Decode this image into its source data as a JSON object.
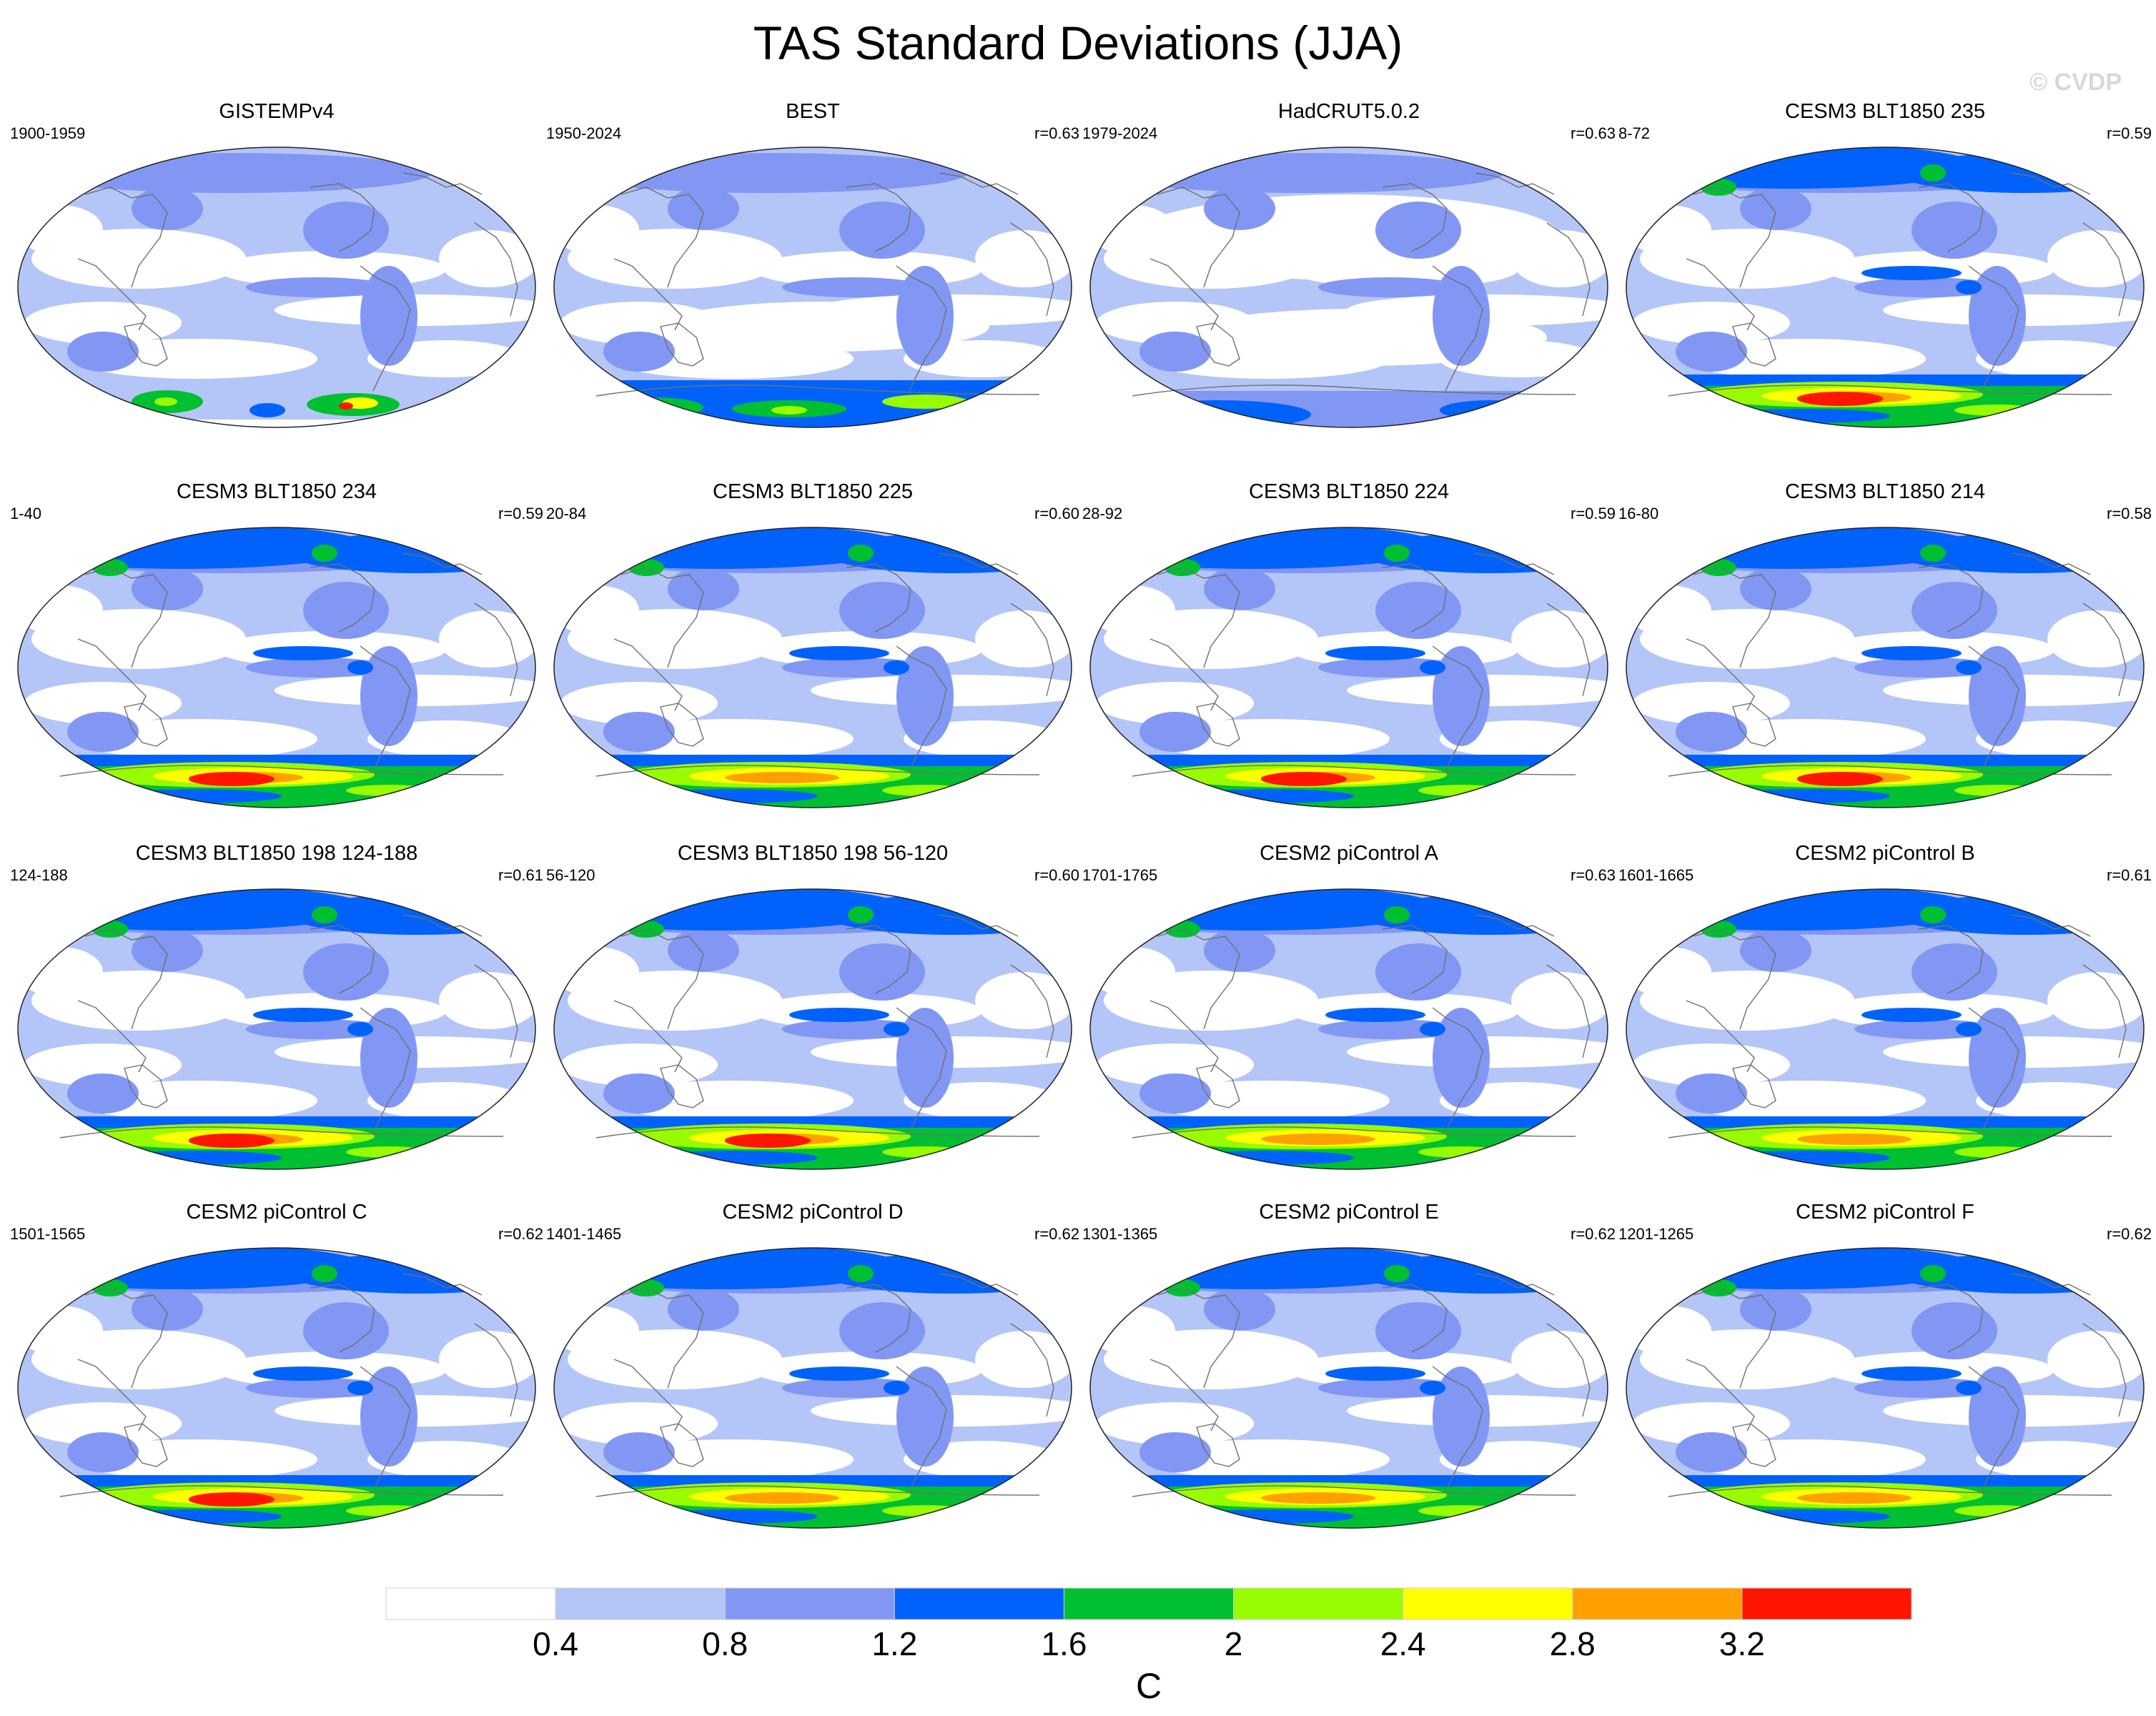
{
  "figure": {
    "title": "TAS Standard Deviations (JJA)",
    "watermark": "© CVDP"
  },
  "colors": {
    "levels": [
      "#ffffff",
      "#b4c5f7",
      "#8297f3",
      "#0062fa",
      "#00c032",
      "#98fb00",
      "#ffff00",
      "#ffa000",
      "#ff1600"
    ],
    "coast": "#707070"
  },
  "chart_data": {
    "type": "heatmap",
    "variable": "TAS",
    "season": "JJA",
    "units": "C",
    "colorbar": {
      "ticks": [
        "0.4",
        "0.8",
        "1.2",
        "1.6",
        "2",
        "2.4",
        "2.8",
        "3.2"
      ],
      "label": "C"
    },
    "panels": [
      {
        "title": "GISTEMPv4",
        "period": "1900-1959",
        "corr": "",
        "max_level": 8,
        "kind": "obs_gis"
      },
      {
        "title": "BEST",
        "period": "1950-2024",
        "corr": "r=0.63",
        "max_level": 5,
        "kind": "obs_best"
      },
      {
        "title": "HadCRUT5.0.2",
        "period": "1979-2024",
        "corr": "r=0.63",
        "max_level": 3,
        "kind": "obs_had"
      },
      {
        "title": "CESM3 BLT1850 235",
        "period": "8-72",
        "corr": "r=0.59",
        "max_level": 8,
        "kind": "model"
      },
      {
        "title": "CESM3 BLT1850 234",
        "period": "1-40",
        "corr": "r=0.59",
        "max_level": 8,
        "kind": "model"
      },
      {
        "title": "CESM3 BLT1850 225",
        "period": "20-84",
        "corr": "r=0.60",
        "max_level": 7,
        "kind": "model"
      },
      {
        "title": "CESM3 BLT1850 224",
        "period": "28-92",
        "corr": "r=0.59",
        "max_level": 8,
        "kind": "model"
      },
      {
        "title": "CESM3 BLT1850 214",
        "period": "16-80",
        "corr": "r=0.58",
        "max_level": 8,
        "kind": "model"
      },
      {
        "title": "CESM3 BLT1850 198 124-188",
        "period": "124-188",
        "corr": "r=0.61",
        "max_level": 8,
        "kind": "model"
      },
      {
        "title": "CESM3 BLT1850 198 56-120",
        "period": "56-120",
        "corr": "r=0.60",
        "max_level": 8,
        "kind": "model"
      },
      {
        "title": "CESM2 piControl A",
        "period": "1701-1765",
        "corr": "r=0.63",
        "max_level": 7,
        "kind": "model"
      },
      {
        "title": "CESM2 piControl B",
        "period": "1601-1665",
        "corr": "r=0.61",
        "max_level": 7,
        "kind": "model"
      },
      {
        "title": "CESM2 piControl C",
        "period": "1501-1565",
        "corr": "r=0.62",
        "max_level": 8,
        "kind": "model"
      },
      {
        "title": "CESM2 piControl D",
        "period": "1401-1465",
        "corr": "r=0.62",
        "max_level": 7,
        "kind": "model"
      },
      {
        "title": "CESM2 piControl E",
        "period": "1301-1365",
        "corr": "r=0.62",
        "max_level": 7,
        "kind": "model"
      },
      {
        "title": "CESM2 piControl F",
        "period": "1201-1265",
        "corr": "r=0.62",
        "max_level": 7,
        "kind": "model"
      }
    ]
  }
}
